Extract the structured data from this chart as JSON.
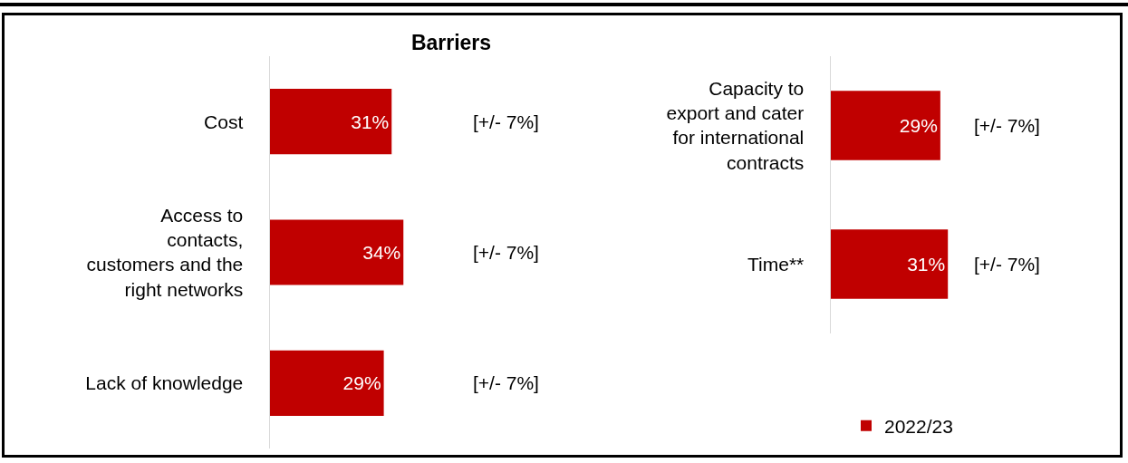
{
  "chart_data": [
    {
      "type": "bar",
      "title": "Barriers",
      "orientation": "horizontal",
      "categories": [
        "Cost",
        "Access to contacts, customers and the right networks",
        "Lack of knowledge"
      ],
      "series": [
        {
          "color": "#c00000",
          "values": [
            31,
            34,
            29
          ],
          "value_labels": [
            "31%",
            "34%",
            "29%"
          ]
        }
      ],
      "tick_labels": "y",
      "grid": false,
      "legend": false,
      "annotations": [
        "[+/- 7%]",
        "[+/- 7%]",
        "[+/- 7%]"
      ]
    },
    {
      "type": "bar",
      "orientation": "horizontal",
      "categories": [
        "Capacity to export and cater for international contracts",
        "Time**"
      ],
      "series": [
        {
          "name": "2022/23",
          "color": "#c00000",
          "values": [
            29,
            31
          ],
          "value_labels": [
            "29%",
            "31%"
          ]
        }
      ],
      "tick_labels": "y",
      "grid": false,
      "legend": "bottom right",
      "annotations": [
        "[+/- 7%]",
        "[+/- 7%]"
      ]
    }
  ]
}
